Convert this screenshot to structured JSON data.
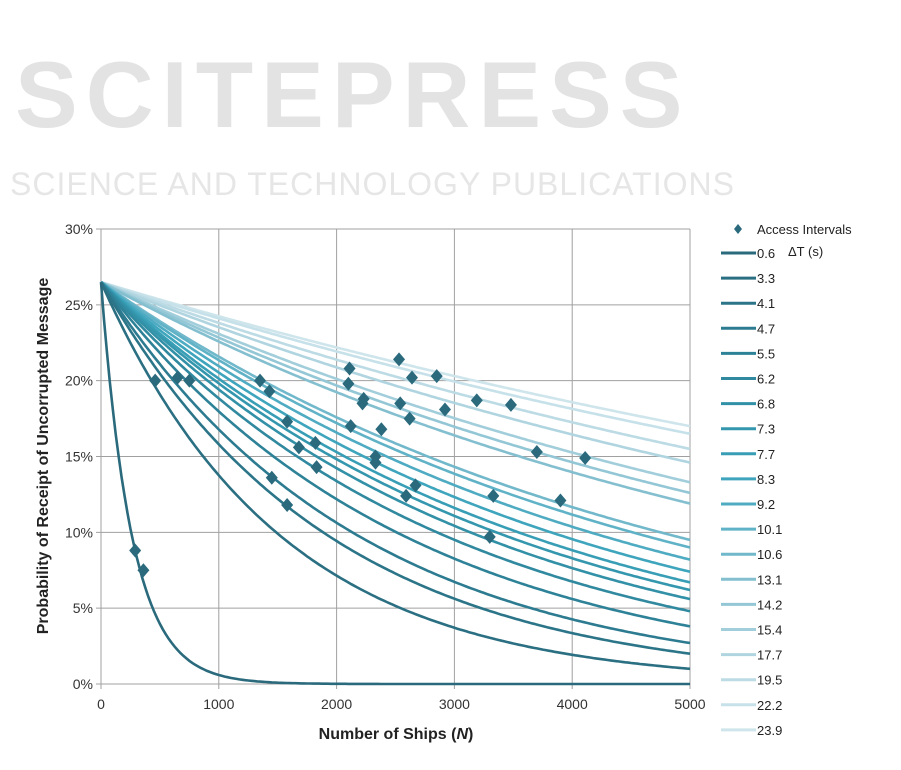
{
  "watermark": {
    "title": "SCITEPRESS",
    "subtitle": "SCIENCE AND TECHNOLOGY PUBLICATIONS"
  },
  "chart_data": {
    "type": "line",
    "title": "",
    "xlabel": "Number of Ships (N)",
    "xlabel_prefix": "Number of Ships (",
    "xlabel_var": "N",
    "xlabel_suffix": ")",
    "ylabel": "Probability of Receipt of Uncorrupted Message",
    "xlim": [
      0,
      5000
    ],
    "ylim": [
      0,
      30
    ],
    "xticks": [
      0,
      1000,
      2000,
      3000,
      4000,
      5000
    ],
    "xtick_labels": [
      "0",
      "1000",
      "2000",
      "3000",
      "4000",
      "5000"
    ],
    "yticks": [
      0,
      5,
      10,
      15,
      20,
      25,
      30
    ],
    "ytick_labels": [
      "0%",
      "5%",
      "10%",
      "15%",
      "20%",
      "25%",
      "30%"
    ],
    "grid": true,
    "legend_position": "right",
    "legend_title": "ΔT (s)",
    "start_value": 26.5,
    "scatter": {
      "name": "Access Intervals",
      "color": "#2a6a7c",
      "points": [
        [
          290,
          8.8
        ],
        [
          360,
          7.5
        ],
        [
          460,
          20.0
        ],
        [
          650,
          20.2
        ],
        [
          750,
          20.0
        ],
        [
          1350,
          20.0
        ],
        [
          1430,
          19.3
        ],
        [
          1450,
          13.6
        ],
        [
          1580,
          11.8
        ],
        [
          1580,
          17.3
        ],
        [
          1680,
          15.6
        ],
        [
          1820,
          15.9
        ],
        [
          1830,
          14.3
        ],
        [
          2100,
          19.8
        ],
        [
          2110,
          20.8
        ],
        [
          2120,
          17.0
        ],
        [
          2220,
          18.5
        ],
        [
          2230,
          18.8
        ],
        [
          2330,
          15.0
        ],
        [
          2330,
          14.6
        ],
        [
          2380,
          16.8
        ],
        [
          2530,
          21.4
        ],
        [
          2540,
          18.5
        ],
        [
          2590,
          12.4
        ],
        [
          2620,
          17.5
        ],
        [
          2640,
          20.2
        ],
        [
          2670,
          13.1
        ],
        [
          2850,
          20.3
        ],
        [
          2920,
          18.1
        ],
        [
          3190,
          18.7
        ],
        [
          3300,
          9.7
        ],
        [
          3330,
          12.4
        ],
        [
          3480,
          18.4
        ],
        [
          3700,
          15.3
        ],
        [
          3900,
          12.1
        ],
        [
          4110,
          14.9
        ]
      ]
    },
    "series": [
      {
        "name": "0.6",
        "value_at_5000": 0.0,
        "color": "#2a6a7c"
      },
      {
        "name": "3.3",
        "value_at_5000": 1.0,
        "color": "#2b6f82"
      },
      {
        "name": "4.1",
        "value_at_5000": 2.0,
        "color": "#2c7589"
      },
      {
        "name": "4.7",
        "value_at_5000": 2.7,
        "color": "#2d7b90"
      },
      {
        "name": "5.5",
        "value_at_5000": 3.8,
        "color": "#2e8298"
      },
      {
        "name": "6.2",
        "value_at_5000": 4.8,
        "color": "#30899f"
      },
      {
        "name": "6.8",
        "value_at_5000": 5.6,
        "color": "#3290a7"
      },
      {
        "name": "7.3",
        "value_at_5000": 6.2,
        "color": "#3497ae"
      },
      {
        "name": "7.7",
        "value_at_5000": 6.7,
        "color": "#389eb6"
      },
      {
        "name": "8.3",
        "value_at_5000": 7.4,
        "color": "#3ea5bd"
      },
      {
        "name": "9.2",
        "value_at_5000": 8.2,
        "color": "#4eabc2"
      },
      {
        "name": "10.1",
        "value_at_5000": 9.0,
        "color": "#60b2c7"
      },
      {
        "name": "10.6",
        "value_at_5000": 9.5,
        "color": "#72b8cb"
      },
      {
        "name": "13.1",
        "value_at_5000": 11.9,
        "color": "#84bfd0"
      },
      {
        "name": "14.2",
        "value_at_5000": 12.6,
        "color": "#94c7d6"
      },
      {
        "name": "15.4",
        "value_at_5000": 13.3,
        "color": "#a2cedb"
      },
      {
        "name": "17.7",
        "value_at_5000": 14.6,
        "color": "#b0d5e0"
      },
      {
        "name": "19.5",
        "value_at_5000": 15.5,
        "color": "#bcdbe5"
      },
      {
        "name": "22.2",
        "value_at_5000": 16.5,
        "color": "#c6e1e9"
      },
      {
        "name": "23.9",
        "value_at_5000": 17.0,
        "color": "#cfe5ec"
      }
    ]
  }
}
